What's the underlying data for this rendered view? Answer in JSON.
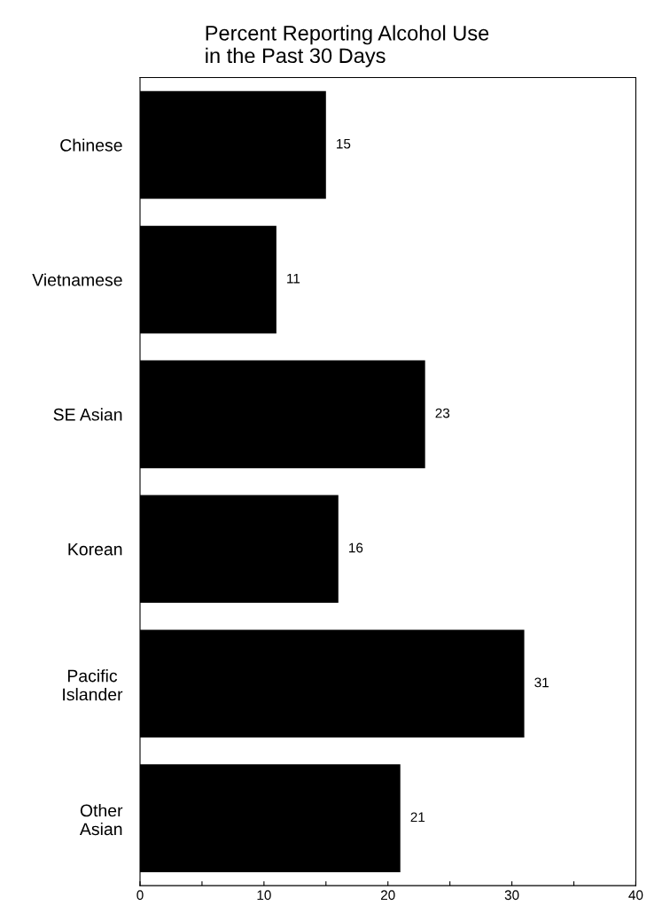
{
  "chart_data": {
    "type": "bar",
    "orientation": "horizontal",
    "title": "Percent Reporting Alcohol Use\nin the Past 30 Days",
    "categories": [
      "Chinese",
      "Vietnamese",
      "SE Asian",
      "Korean",
      "Pacific\nIslander",
      "Other\nAsian"
    ],
    "values": [
      15,
      11,
      23,
      16,
      31,
      21
    ],
    "color": "#000000",
    "data_labels": true,
    "xlim": [
      0,
      40
    ],
    "xticks": [
      0,
      {
        "value": 5,
        "label": null
      },
      10,
      {
        "value": 15,
        "label": null
      },
      20,
      {
        "value": 25,
        "label": null
      },
      30,
      {
        "value": 35,
        "label": null
      },
      40
    ],
    "grid": false
  }
}
